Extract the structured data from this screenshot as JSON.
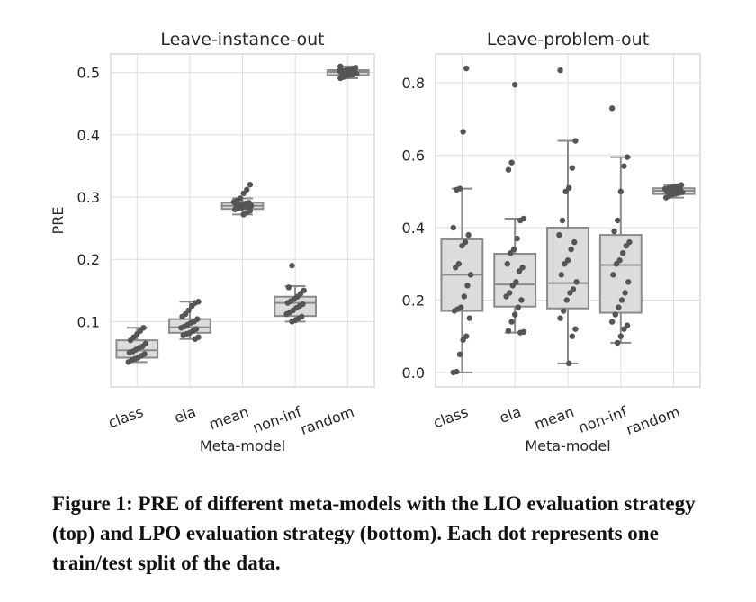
{
  "caption": "Figure 1: PRE of different meta-models with the LIO evaluation strategy (top) and LPO evaluation strategy (bottom). Each dot represents one train/test split of the data.",
  "colors": {
    "box_fill": "#dcdcdc",
    "box_line": "#8a8a8a",
    "point": "#555555",
    "grid": "#dedede",
    "frame": "#cfcfcf"
  },
  "chart_data": [
    {
      "type": "box",
      "title": "Leave-instance-out",
      "xlabel": "Meta-model",
      "ylabel": "PRE",
      "categories": [
        "class",
        "ela",
        "mean",
        "non-inf",
        "random"
      ],
      "ylim": [
        -0.005,
        0.53
      ],
      "yticks": [
        0.1,
        0.2,
        0.3,
        0.4,
        0.5
      ],
      "ytick_labels": [
        "0.1",
        "0.2",
        "0.3",
        "0.4",
        "0.5"
      ],
      "grid": true,
      "boxes": [
        {
          "name": "class",
          "whislo": 0.035,
          "q1": 0.042,
          "med": 0.054,
          "q3": 0.07,
          "whishi": 0.09,
          "points": [
            0.035,
            0.038,
            0.04,
            0.042,
            0.045,
            0.048,
            0.05,
            0.052,
            0.055,
            0.058,
            0.06,
            0.065,
            0.07,
            0.075,
            0.08,
            0.085,
            0.09
          ]
        },
        {
          "name": "ela",
          "whislo": 0.072,
          "q1": 0.082,
          "med": 0.091,
          "q3": 0.104,
          "whishi": 0.132,
          "points": [
            0.072,
            0.075,
            0.078,
            0.08,
            0.082,
            0.085,
            0.088,
            0.09,
            0.092,
            0.095,
            0.098,
            0.1,
            0.104,
            0.108,
            0.112,
            0.118,
            0.125,
            0.13,
            0.132
          ]
        },
        {
          "name": "mean",
          "whislo": 0.272,
          "q1": 0.281,
          "med": 0.286,
          "q3": 0.291,
          "whishi": 0.298,
          "points": [
            0.272,
            0.275,
            0.278,
            0.28,
            0.282,
            0.283,
            0.284,
            0.285,
            0.286,
            0.287,
            0.288,
            0.289,
            0.29,
            0.291,
            0.292,
            0.295,
            0.298,
            0.306,
            0.312,
            0.32
          ]
        },
        {
          "name": "non-inf",
          "whislo": 0.1,
          "q1": 0.109,
          "med": 0.13,
          "q3": 0.14,
          "whishi": 0.157,
          "points": [
            0.1,
            0.102,
            0.105,
            0.108,
            0.112,
            0.115,
            0.118,
            0.122,
            0.125,
            0.128,
            0.13,
            0.133,
            0.136,
            0.14,
            0.145,
            0.15,
            0.155,
            0.19
          ]
        },
        {
          "name": "random",
          "whislo": 0.491,
          "q1": 0.496,
          "med": 0.501,
          "q3": 0.504,
          "whishi": 0.51,
          "points": [
            0.491,
            0.493,
            0.495,
            0.496,
            0.497,
            0.498,
            0.499,
            0.5,
            0.5,
            0.501,
            0.502,
            0.503,
            0.503,
            0.504,
            0.505,
            0.506,
            0.508,
            0.51
          ]
        }
      ]
    },
    {
      "type": "box",
      "title": "Leave-problem-out",
      "xlabel": "Meta-model",
      "ylabel": "",
      "categories": [
        "class",
        "ela",
        "mean",
        "non-inf",
        "random"
      ],
      "ylim": [
        -0.04,
        0.88
      ],
      "yticks": [
        0.0,
        0.2,
        0.4,
        0.6,
        0.8
      ],
      "ytick_labels": [
        "0.0",
        "0.2",
        "0.4",
        "0.6",
        "0.8"
      ],
      "grid": true,
      "boxes": [
        {
          "name": "class",
          "whislo": 0.0,
          "q1": 0.17,
          "med": 0.27,
          "q3": 0.368,
          "whishi": 0.508,
          "points": [
            0.0,
            0.002,
            0.05,
            0.09,
            0.1,
            0.15,
            0.17,
            0.175,
            0.18,
            0.21,
            0.24,
            0.27,
            0.29,
            0.3,
            0.35,
            0.36,
            0.38,
            0.4,
            0.505,
            0.508,
            0.665,
            0.84
          ]
        },
        {
          "name": "ela",
          "whislo": 0.11,
          "q1": 0.182,
          "med": 0.243,
          "q3": 0.328,
          "whishi": 0.425,
          "points": [
            0.11,
            0.112,
            0.115,
            0.14,
            0.16,
            0.18,
            0.2,
            0.21,
            0.22,
            0.24,
            0.25,
            0.28,
            0.29,
            0.3,
            0.33,
            0.34,
            0.37,
            0.42,
            0.425,
            0.56,
            0.58,
            0.795
          ]
        },
        {
          "name": "mean",
          "whislo": 0.025,
          "q1": 0.177,
          "med": 0.247,
          "q3": 0.4,
          "whishi": 0.64,
          "points": [
            0.025,
            0.1,
            0.12,
            0.15,
            0.17,
            0.2,
            0.22,
            0.23,
            0.25,
            0.27,
            0.3,
            0.31,
            0.34,
            0.36,
            0.38,
            0.42,
            0.5,
            0.51,
            0.565,
            0.64,
            0.835
          ]
        },
        {
          "name": "non-inf",
          "whislo": 0.082,
          "q1": 0.165,
          "med": 0.297,
          "q3": 0.38,
          "whishi": 0.595,
          "points": [
            0.082,
            0.1,
            0.12,
            0.13,
            0.14,
            0.16,
            0.18,
            0.2,
            0.22,
            0.25,
            0.27,
            0.3,
            0.31,
            0.33,
            0.35,
            0.36,
            0.39,
            0.42,
            0.5,
            0.57,
            0.595,
            0.73
          ]
        },
        {
          "name": "random",
          "whislo": 0.483,
          "q1": 0.493,
          "med": 0.502,
          "q3": 0.509,
          "whishi": 0.518,
          "points": [
            0.483,
            0.488,
            0.492,
            0.494,
            0.496,
            0.498,
            0.5,
            0.501,
            0.502,
            0.503,
            0.505,
            0.507,
            0.509,
            0.511,
            0.513,
            0.515,
            0.518
          ]
        }
      ]
    }
  ]
}
